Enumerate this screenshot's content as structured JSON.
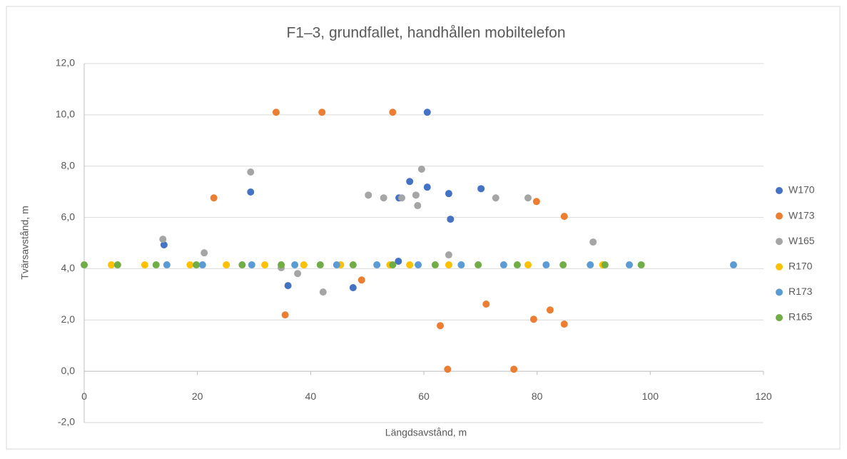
{
  "chart_data": {
    "type": "scatter",
    "title": "F1–3, grundfallet, handhållen mobiltelefon",
    "x_label": "Längdsavstånd, m",
    "y_label": "Tvärsavstånd, m",
    "xlim": [
      0,
      120
    ],
    "xticks": [
      0,
      20,
      40,
      60,
      80,
      100,
      120
    ],
    "ylim": [
      -2,
      12
    ],
    "yticks": [
      {
        "value": -2,
        "label": "-2,0"
      },
      {
        "value": 0,
        "label": "0,0"
      },
      {
        "value": 2,
        "label": "2,0"
      },
      {
        "value": 4,
        "label": "4,0"
      },
      {
        "value": 6,
        "label": "6,0"
      },
      {
        "value": 8,
        "label": "8,0"
      },
      {
        "value": 10,
        "label": "10,0"
      },
      {
        "value": 12,
        "label": "12,0"
      }
    ],
    "grid": true,
    "legend": "right",
    "series": [
      {
        "name": "W170",
        "color": "#4472c4",
        "x": [
          14.1,
          29.4,
          36.0,
          47.5,
          57.5,
          55.6,
          60.6,
          60.6,
          55.5,
          64.4,
          64.7,
          70.1
        ],
        "values": [
          4.93,
          6.99,
          3.34,
          3.26,
          7.4,
          6.76,
          10.1,
          7.18,
          4.29,
          6.93,
          5.93,
          7.12
        ]
      },
      {
        "name": "W173",
        "color": "#ed7d31",
        "x": [
          22.9,
          33.9,
          42.0,
          54.5,
          35.5,
          49.0,
          62.9,
          64.2,
          71.0,
          75.9,
          79.9,
          79.4,
          82.3,
          84.8,
          84.8
        ],
        "values": [
          6.76,
          10.1,
          10.1,
          10.1,
          2.2,
          3.56,
          1.78,
          0.08,
          2.62,
          0.08,
          6.62,
          2.03,
          2.39,
          6.04,
          1.84
        ]
      },
      {
        "name": "W165",
        "color": "#a5a5a5",
        "x": [
          13.9,
          21.2,
          29.4,
          34.8,
          37.7,
          42.2,
          50.2,
          52.9,
          56.1,
          58.6,
          58.9,
          59.6,
          64.4,
          72.7,
          78.4,
          89.9
        ],
        "values": [
          5.15,
          4.62,
          7.77,
          4.04,
          3.81,
          3.09,
          6.87,
          6.76,
          6.76,
          6.87,
          6.46,
          7.88,
          4.54,
          6.76,
          6.76,
          5.04
        ]
      },
      {
        "name": "R170",
        "color": "#ffc000",
        "x": [
          4.8,
          10.7,
          18.7,
          25.1,
          31.9,
          38.8,
          45.3,
          54.0,
          57.5,
          64.4,
          78.4,
          91.6
        ],
        "values": [
          4.15,
          4.15,
          4.15,
          4.15,
          4.15,
          4.15,
          4.15,
          4.15,
          4.15,
          4.15,
          4.15,
          4.15
        ]
      },
      {
        "name": "R173",
        "color": "#5b9bd5",
        "x": [
          14.6,
          20.9,
          29.6,
          37.2,
          44.6,
          51.7,
          59.0,
          66.6,
          74.1,
          81.6,
          89.4,
          96.3,
          114.7
        ],
        "values": [
          4.15,
          4.15,
          4.15,
          4.15,
          4.15,
          4.15,
          4.15,
          4.15,
          4.15,
          4.15,
          4.15,
          4.15,
          4.15
        ]
      },
      {
        "name": "R165",
        "color": "#70ad47",
        "x": [
          0,
          5.9,
          12.7,
          19.8,
          27.9,
          34.8,
          41.7,
          47.5,
          54.5,
          62.0,
          69.6,
          76.5,
          84.6,
          92.0,
          98.4
        ],
        "values": [
          4.15,
          4.15,
          4.15,
          4.15,
          4.15,
          4.15,
          4.15,
          4.15,
          4.15,
          4.15,
          4.15,
          4.15,
          4.15,
          4.15,
          4.15
        ]
      }
    ]
  }
}
